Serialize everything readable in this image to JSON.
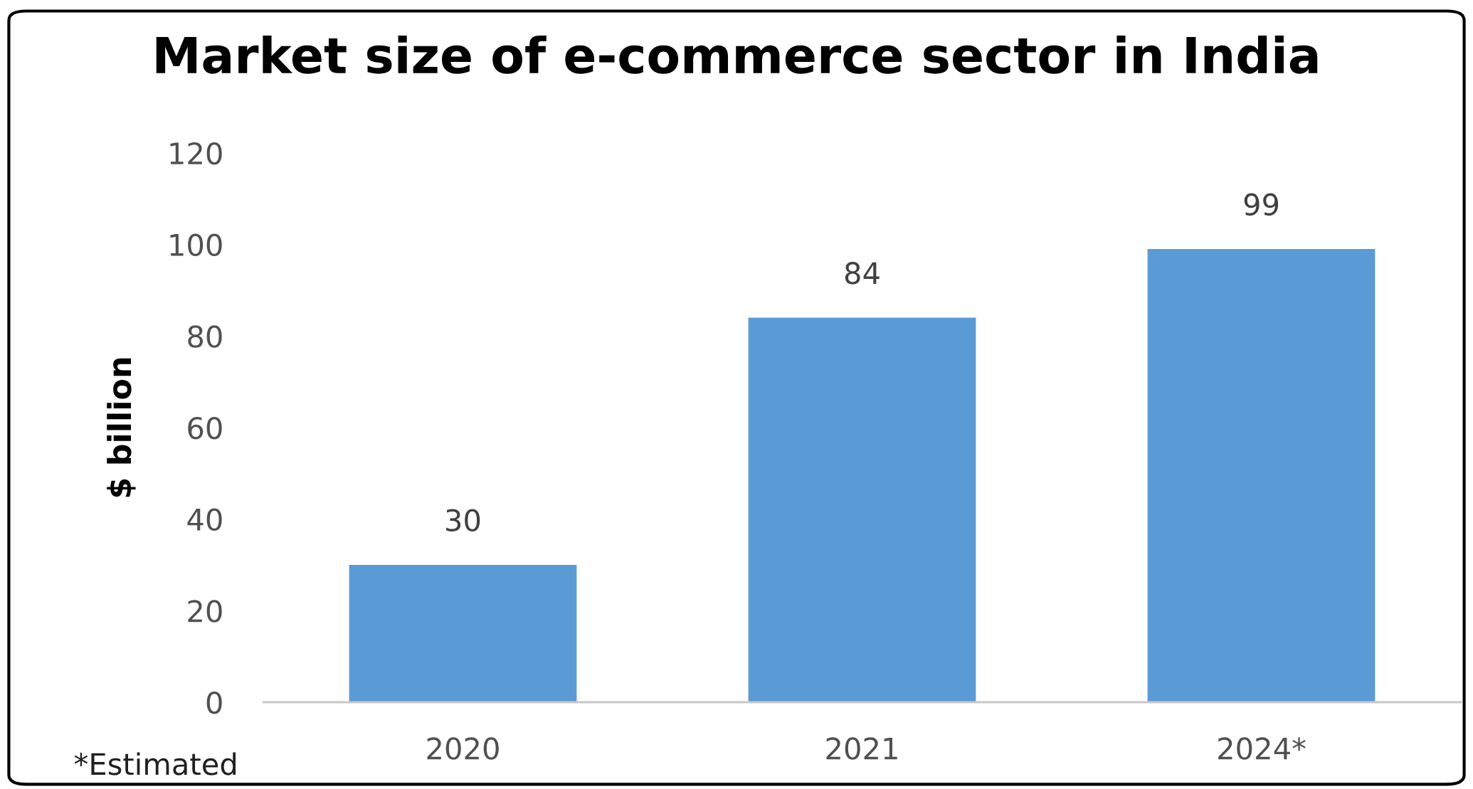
{
  "chart_data": {
    "type": "bar",
    "title": "Market size of e-commerce sector in India",
    "ylabel": "$ billion",
    "categories": [
      "2020",
      "2021",
      "2024*"
    ],
    "series": [
      {
        "color": "#5b9bd5",
        "values": [
          30,
          84,
          99
        ]
      }
    ],
    "ylim": [
      0,
      120
    ],
    "yticks": [
      0,
      20,
      40,
      60,
      80,
      100,
      120
    ],
    "grid": false,
    "legend": false,
    "data_labels": true,
    "annotations": [
      "*Estimated"
    ]
  }
}
